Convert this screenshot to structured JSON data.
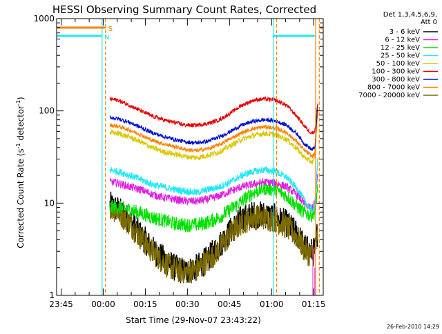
{
  "chart_data": {
    "type": "line",
    "title": "HESSI Observing Summary Count Rates, Corrected",
    "xlabel": "Start Time (29-Nov-07 23:43:22)",
    "ylabel": "Corrected Count Rate (s⁻¹ detector⁻¹)",
    "ylabel_main": "Corrected Count Rate (s",
    "ylabel_sup1": "-1",
    "ylabel_mid": " detector",
    "ylabel_sup2": "-1",
    "ylabel_end": ")",
    "yscale": "log",
    "ylim": [
      1,
      1000
    ],
    "yticks": [
      {
        "value": 1,
        "label": "1"
      },
      {
        "value": 10,
        "label": "10"
      },
      {
        "value": 100,
        "label": "100"
      },
      {
        "value": 1000,
        "label": "1000"
      }
    ],
    "xunit": "minutes since 23:43:22",
    "xlim": [
      0,
      95
    ],
    "xticks": [
      {
        "value": 1.6,
        "label": "23:45"
      },
      {
        "value": 16.6,
        "label": "00:00"
      },
      {
        "value": 31.6,
        "label": "00:15"
      },
      {
        "value": 46.6,
        "label": "00:30"
      },
      {
        "value": 61.6,
        "label": "00:45"
      },
      {
        "value": 76.6,
        "label": "01:00"
      },
      {
        "value": 91.6,
        "label": "01:15"
      }
    ],
    "legend_header": [
      "Det 1,3,4,5,6,9,",
      "Att 0"
    ],
    "legend_placement": "right",
    "series": [
      {
        "name": "3 - 6 keV",
        "color": "#000000",
        "key": "e3"
      },
      {
        "name": "6 - 12 keV",
        "color": "#e020e0",
        "key": "e6"
      },
      {
        "name": "12 - 25 keV",
        "color": "#00e000",
        "key": "e12"
      },
      {
        "name": "25 - 50 keV",
        "color": "#20e8f0",
        "key": "e25"
      },
      {
        "name": "50 - 100 keV",
        "color": "#d8c800",
        "key": "e50"
      },
      {
        "name": "100 - 300 keV",
        "color": "#e00000",
        "key": "e100"
      },
      {
        "name": "300 - 800 keV",
        "color": "#0010d0",
        "key": "e300"
      },
      {
        "name": "800 - 7000 keV",
        "color": "#ff8000",
        "key": "e800"
      },
      {
        "name": "7000 - 20000 keV",
        "color": "#7a6a00",
        "key": "e7000"
      }
    ],
    "curves": {
      "x": [
        19,
        22,
        26,
        30,
        34,
        38,
        42,
        46,
        50,
        54,
        58,
        62,
        66,
        70,
        74,
        78,
        82,
        86,
        88,
        90,
        91,
        92,
        93
      ],
      "e100": [
        135,
        130,
        115,
        100,
        88,
        80,
        75,
        70,
        70,
        73,
        80,
        95,
        115,
        130,
        135,
        130,
        115,
        85,
        70,
        60,
        58,
        60,
        120
      ],
      "e300": [
        85,
        82,
        75,
        66,
        58,
        53,
        49,
        46,
        45,
        47,
        52,
        60,
        70,
        77,
        80,
        78,
        70,
        55,
        45,
        40,
        38,
        40,
        110
      ],
      "e800": [
        70,
        68,
        62,
        55,
        48,
        44,
        41,
        38,
        37,
        39,
        43,
        50,
        58,
        64,
        67,
        65,
        58,
        45,
        38,
        34,
        32,
        34,
        100
      ],
      "e50": [
        58,
        57,
        52,
        46,
        40,
        36,
        34,
        32,
        31,
        33,
        36,
        42,
        49,
        54,
        57,
        55,
        49,
        38,
        32,
        29,
        28,
        30,
        90
      ],
      "e25": [
        23,
        22,
        20,
        18,
        16,
        15,
        14,
        13.5,
        13,
        14,
        15,
        17,
        20,
        22,
        23,
        22,
        19,
        14,
        11,
        9,
        8.5,
        9,
        30
      ],
      "e6": [
        17,
        16.5,
        15,
        14,
        12.5,
        11.5,
        11,
        10.5,
        10.5,
        11,
        12,
        13.5,
        15,
        16,
        17,
        16.5,
        15,
        12,
        10,
        9,
        9,
        10,
        20
      ],
      "e12": [
        9,
        9,
        8.5,
        7.8,
        7,
        6.5,
        6,
        5.8,
        5.8,
        6.2,
        7,
        8.5,
        10.5,
        13,
        14.5,
        14,
        12,
        9,
        8,
        7.5,
        7.5,
        8,
        15
      ],
      "e3": [
        9.5,
        8.5,
        6.5,
        4.5,
        3.2,
        2.5,
        2,
        1.8,
        2,
        2.5,
        3.5,
        5,
        6.8,
        7.5,
        7.5,
        7,
        6,
        4.5,
        3.5,
        3,
        3,
        3,
        5
      ],
      "e7000": [
        9,
        8,
        6,
        4.2,
        3,
        2.3,
        1.9,
        1.8,
        1.9,
        2.4,
        3.2,
        4.6,
        6.2,
        7,
        7,
        6.5,
        5.5,
        4.2,
        3.2,
        2.8,
        2.8,
        2.8,
        4.5
      ]
    },
    "flag_lines": [
      {
        "name": "S",
        "color": "#ff8000",
        "ranges": [
          [
            0,
            17.4
          ],
          [
            93.5,
            95
          ]
        ],
        "level": 800
      },
      {
        "name": "N",
        "color": "#20e8f0",
        "ranges": [
          [
            0,
            16
          ],
          [
            77,
            92
          ]
        ],
        "level": 650
      }
    ],
    "vertical_markers": [
      {
        "x": 16.2,
        "color": "#20e8f0",
        "style": "solid"
      },
      {
        "x": 17.4,
        "color": "#ff8000",
        "style": "dashed"
      },
      {
        "x": 77.2,
        "color": "#20e8f0",
        "style": "solid"
      },
      {
        "x": 78.4,
        "color": "#ff8000",
        "style": "dashed"
      },
      {
        "x": 92.3,
        "color": "#ff8000",
        "style": "solid"
      },
      {
        "x": 93.6,
        "color": "#ff8000",
        "style": "dashed"
      }
    ],
    "footer_timestamp": "26-Feb-2010 14:29",
    "grid": false
  }
}
